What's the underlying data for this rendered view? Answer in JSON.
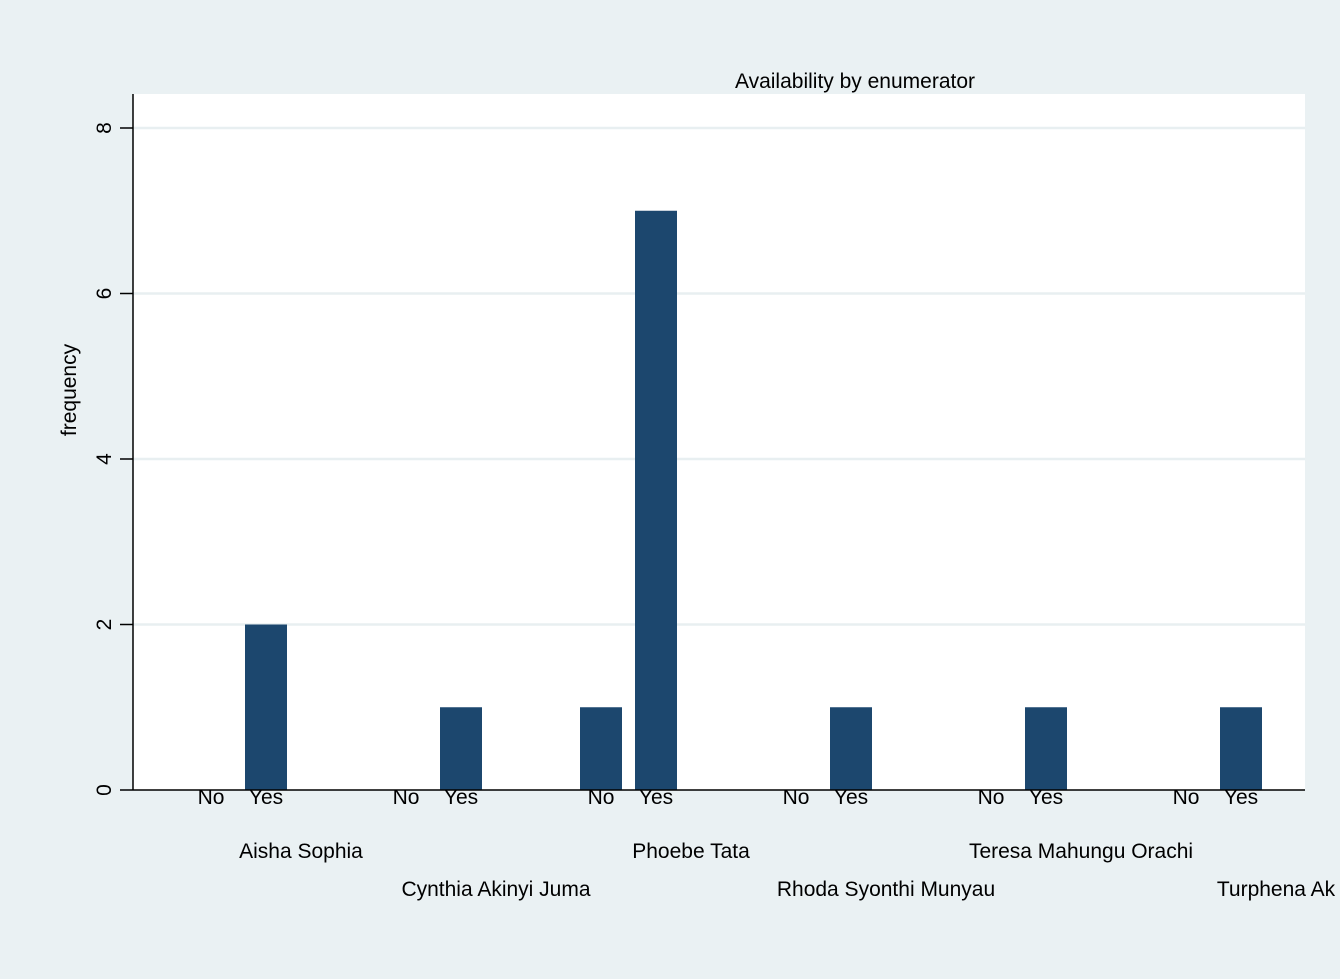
{
  "chart_data": {
    "type": "bar",
    "title": "Availability by enumerator",
    "ylabel": "frequency",
    "xlabel": "",
    "ylim": [
      0,
      8.4
    ],
    "yticks": [
      0,
      2,
      4,
      6,
      8
    ],
    "grid": true,
    "legend": "none",
    "groups": [
      {
        "name": "Aisha Sophia",
        "categories": [
          "No",
          "Yes"
        ],
        "values": [
          0,
          2
        ]
      },
      {
        "name": "Cynthia Akinyi Juma",
        "categories": [
          "No",
          "Yes"
        ],
        "values": [
          0,
          1
        ]
      },
      {
        "name": "Phoebe Tata",
        "categories": [
          "No",
          "Yes"
        ],
        "values": [
          1,
          7
        ]
      },
      {
        "name": "Rhoda Syonthi Munyau",
        "categories": [
          "No",
          "Yes"
        ],
        "values": [
          0,
          1
        ]
      },
      {
        "name": "Teresa Mahungu Orachi",
        "categories": [
          "No",
          "Yes"
        ],
        "values": [
          0,
          1
        ]
      },
      {
        "name": "Turphena Ak",
        "categories": [
          "No",
          "Yes"
        ],
        "values": [
          0,
          1
        ]
      }
    ],
    "colors": {
      "bar": "#1c476e",
      "grid": "#e8eff1",
      "background": "#eaf1f3",
      "plot_background": "#ffffff",
      "axis": "#000000"
    }
  }
}
